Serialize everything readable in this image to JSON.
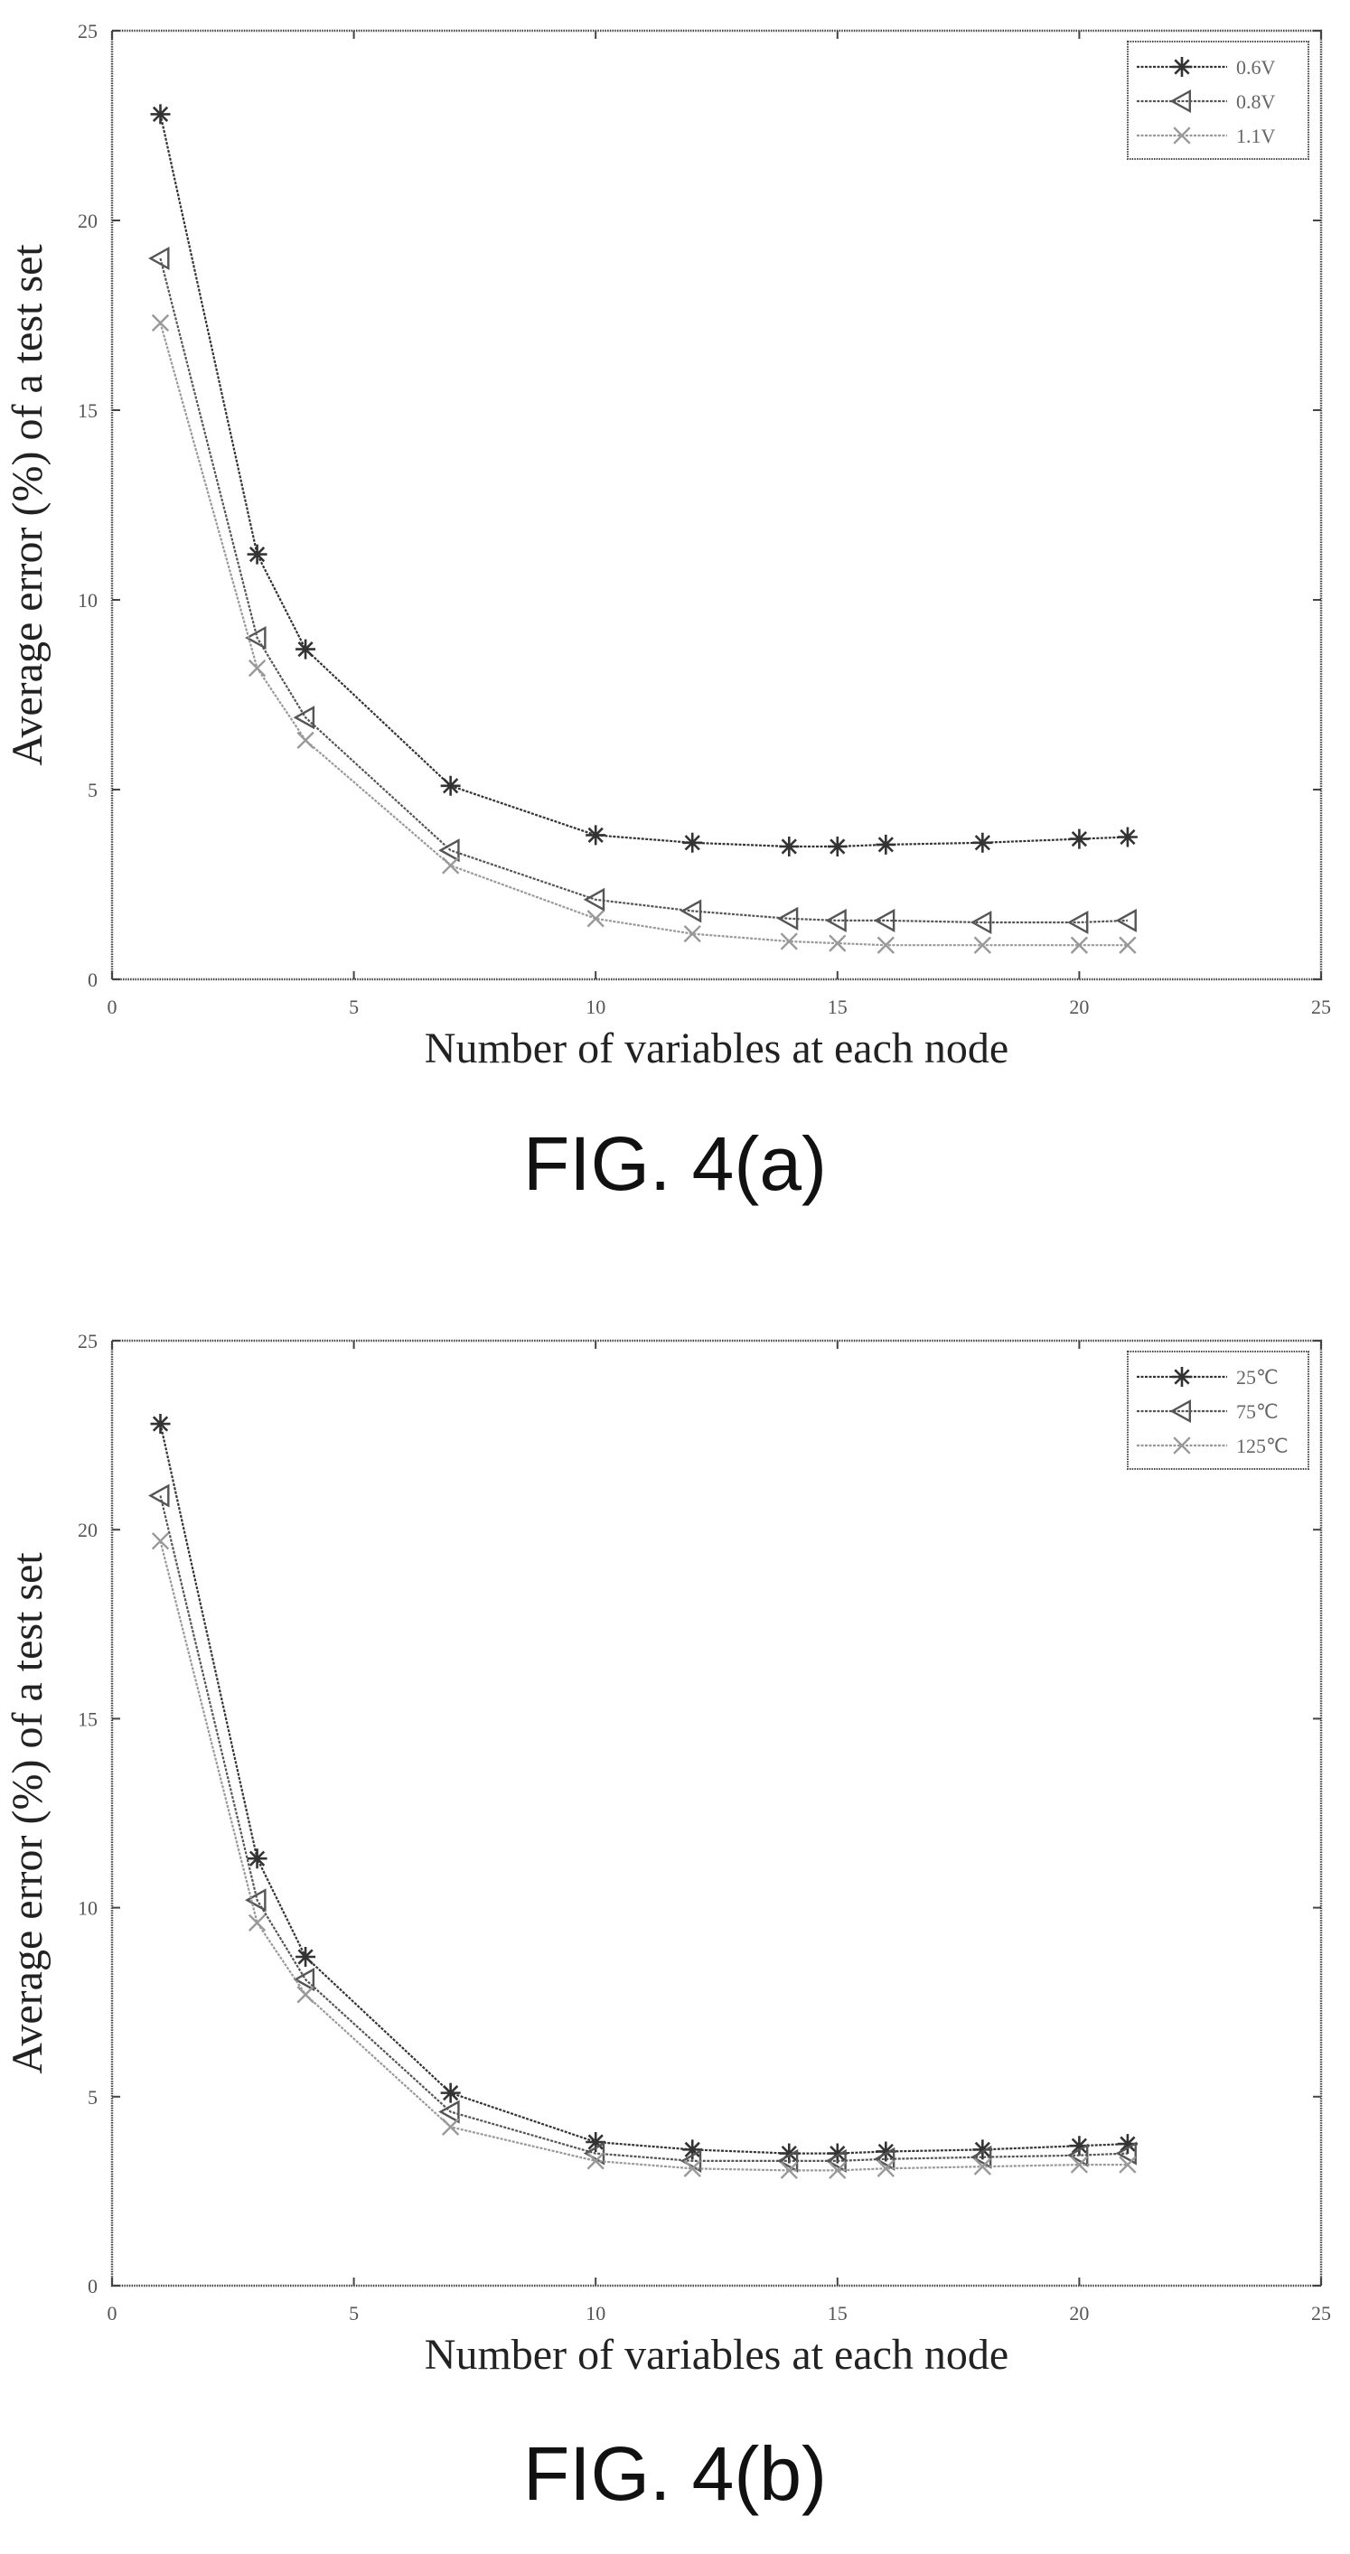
{
  "figures": [
    {
      "caption": "FIG. 4(a)",
      "chart_data": {
        "type": "line",
        "title": "",
        "xlabel": "Number of variables at each node",
        "ylabel": "Average error (%) of a test set",
        "xlim": [
          0,
          25
        ],
        "ylim": [
          0,
          25
        ],
        "xticks": [
          0,
          5,
          10,
          15,
          20,
          25
        ],
        "yticks": [
          0,
          5,
          10,
          15,
          20,
          25
        ],
        "grid": false,
        "legend_position": "top-right",
        "x": [
          1,
          3,
          4,
          7,
          10,
          12,
          14,
          15,
          16,
          18,
          20,
          21
        ],
        "series": [
          {
            "name": "0.6V",
            "marker": "asterisk",
            "color": "#333333",
            "values": [
              22.8,
              11.2,
              8.7,
              5.1,
              3.8,
              3.6,
              3.5,
              3.5,
              3.55,
              3.6,
              3.7,
              3.75
            ]
          },
          {
            "name": "0.8V",
            "marker": "triangle-left",
            "color": "#555555",
            "values": [
              19.0,
              9.0,
              6.9,
              3.4,
              2.1,
              1.8,
              1.6,
              1.55,
              1.55,
              1.5,
              1.5,
              1.55
            ]
          },
          {
            "name": "1.1V",
            "marker": "x",
            "color": "#999999",
            "values": [
              17.3,
              8.2,
              6.3,
              3.0,
              1.6,
              1.2,
              1.0,
              0.95,
              0.9,
              0.9,
              0.9,
              0.9
            ]
          }
        ]
      }
    },
    {
      "caption": "FIG. 4(b)",
      "chart_data": {
        "type": "line",
        "title": "",
        "xlabel": "Number of variables at each node",
        "ylabel": "Average error (%) of a test set",
        "xlim": [
          0,
          25
        ],
        "ylim": [
          0,
          25
        ],
        "xticks": [
          0,
          5,
          10,
          15,
          20,
          25
        ],
        "yticks": [
          0,
          5,
          10,
          15,
          20,
          25
        ],
        "grid": false,
        "legend_position": "top-right",
        "x": [
          1,
          3,
          4,
          7,
          10,
          12,
          14,
          15,
          16,
          18,
          20,
          21
        ],
        "series": [
          {
            "name": "25℃",
            "marker": "asterisk",
            "color": "#333333",
            "values": [
              22.8,
              11.3,
              8.7,
              5.1,
              3.8,
              3.6,
              3.5,
              3.5,
              3.55,
              3.6,
              3.7,
              3.75
            ]
          },
          {
            "name": "75℃",
            "marker": "triangle-left",
            "color": "#555555",
            "values": [
              20.9,
              10.2,
              8.1,
              4.6,
              3.5,
              3.3,
              3.3,
              3.3,
              3.35,
              3.4,
              3.45,
              3.5
            ]
          },
          {
            "name": "125℃",
            "marker": "x",
            "color": "#999999",
            "values": [
              19.7,
              9.6,
              7.7,
              4.2,
              3.3,
              3.1,
              3.05,
              3.05,
              3.1,
              3.15,
              3.2,
              3.2
            ]
          }
        ]
      }
    }
  ]
}
